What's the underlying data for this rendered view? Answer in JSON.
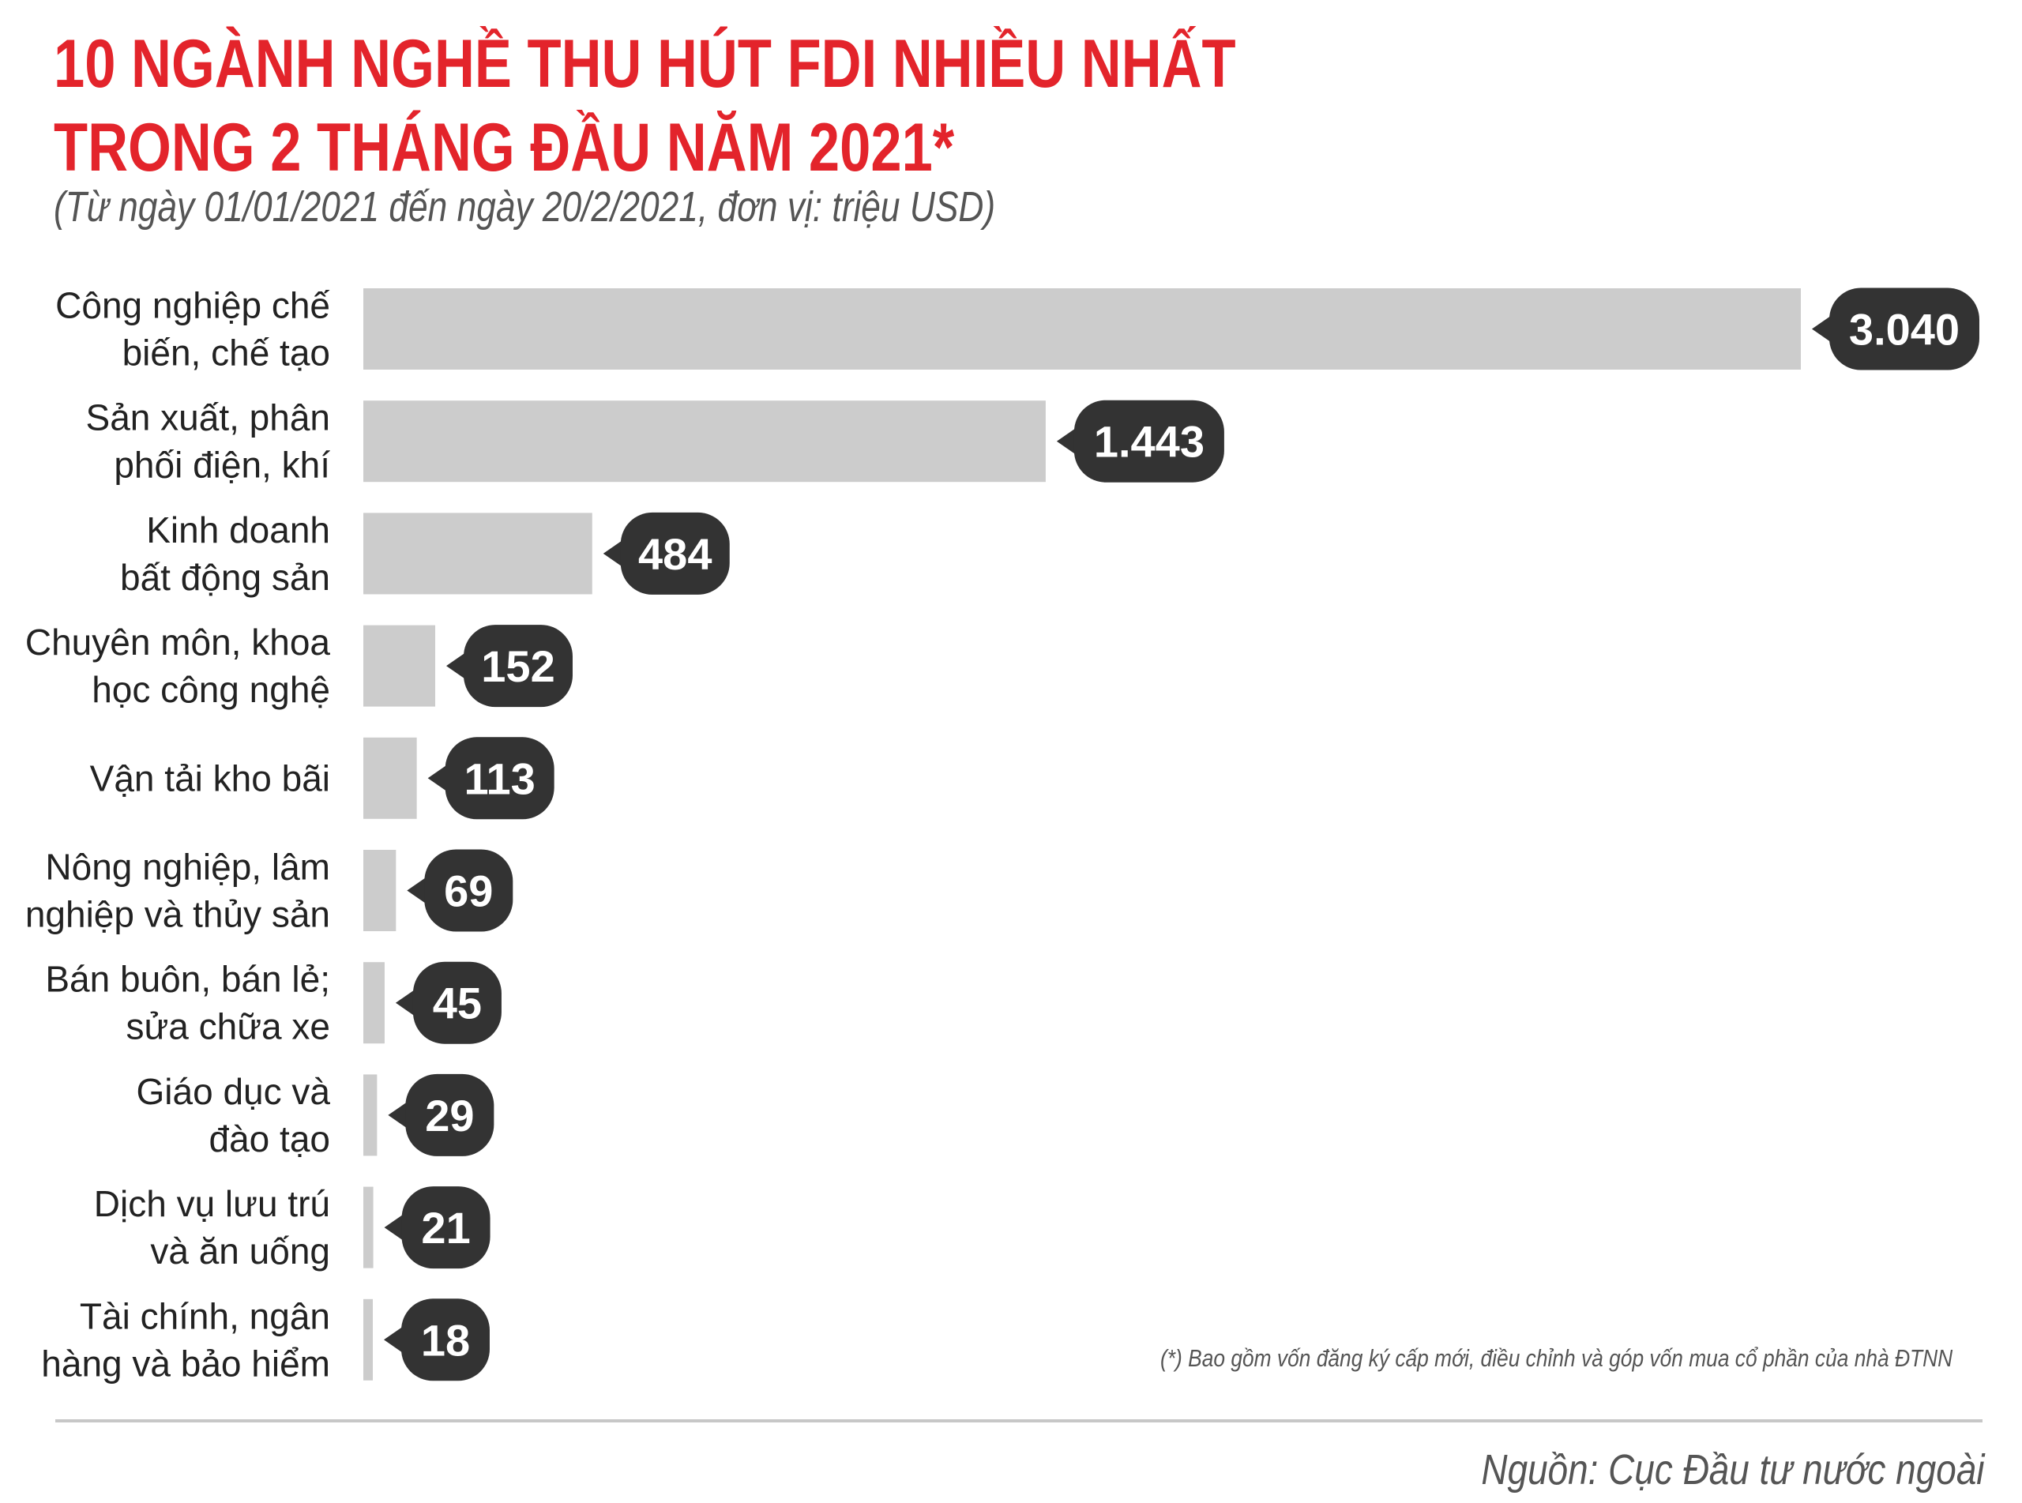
{
  "title": {
    "line1": "10 NGÀNH NGHỀ THU HÚT FDI NHIỀU NHẤT",
    "line2": "TRONG 2 THÁNG ĐẦU NĂM 2021*"
  },
  "subtitle": "(Từ ngày 01/01/2021 đến ngày 20/2/2021, đơn vị: triệu USD)",
  "footnote": "(*) Bao gồm vốn đăng ký cấp mới, điều chỉnh và góp vốn mua cổ phần của nhà ĐTNN",
  "source": "Nguồn: Cục Đầu tư nước ngoài",
  "colors": {
    "title": "#e3242b",
    "bar": "#cccccc",
    "badge": "#333333",
    "badge_text": "#ffffff"
  },
  "chart_data": {
    "type": "bar",
    "orientation": "horizontal",
    "categories": [
      [
        "Công nghiệp chế",
        "biến, chế tạo"
      ],
      [
        "Sản xuất, phân",
        "phối điện, khí"
      ],
      [
        "Kinh doanh",
        "bất động sản"
      ],
      [
        "Chuyên môn, khoa",
        "học công nghệ"
      ],
      [
        "Vận tải kho bãi"
      ],
      [
        "Nông nghiệp, lâm",
        "nghiệp và thủy sản"
      ],
      [
        "Bán buôn, bán lẻ;",
        "sửa chữa xe"
      ],
      [
        "Giáo dục và",
        "đào tạo"
      ],
      [
        "Dịch vụ lưu trú",
        "và ăn uống"
      ],
      [
        "Tài chính, ngân",
        "hàng và bảo hiểm"
      ]
    ],
    "values": [
      3040,
      1443,
      484,
      152,
      113,
      69,
      45,
      29,
      21,
      18
    ],
    "value_labels": [
      "3.040",
      "1.443",
      "484",
      "152",
      "113",
      "69",
      "45",
      "29",
      "21",
      "18"
    ],
    "xlim": [
      0,
      3040
    ],
    "grid": false,
    "legend": false
  }
}
